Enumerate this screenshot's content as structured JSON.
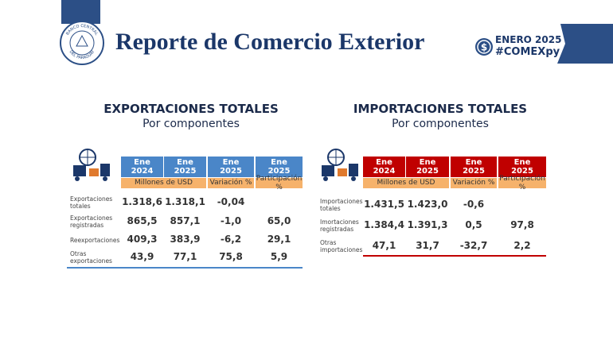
{
  "header": {
    "logo_top": "BANCO CENTRAL",
    "logo_bottom": "DEL PARAGUAY",
    "title": "Reporte de Comercio Exterior",
    "period": "ENERO 2025",
    "hashtag": "#COMEXpy"
  },
  "tables": [
    {
      "title": "EXPORTACIONES TOTALES",
      "subtitle": "Por componentes",
      "headers": [
        "Ene 2024",
        "Ene 2025",
        "Ene 2025",
        "Ene 2025"
      ],
      "subheaders": [
        "Millones de USD",
        "Variación %",
        "Participación %"
      ],
      "rows": [
        {
          "label": "Exportaciones totales",
          "cells": [
            "1.318,6",
            "1.318,1",
            "-0,04",
            null
          ]
        },
        {
          "label": "Exportaciones registradas",
          "cells": [
            "865,5",
            "857,1",
            "-1,0",
            "65,0"
          ]
        },
        {
          "label": "Reexportaciones",
          "cells": [
            "409,3",
            "383,9",
            "-6,2",
            "29,1"
          ]
        },
        {
          "label": "Otras exportaciones",
          "cells": [
            "43,9",
            "77,1",
            "75,8",
            "5,9"
          ]
        }
      ]
    },
    {
      "title": "IMPORTACIONES TOTALES",
      "subtitle": "Por componentes",
      "headers": [
        "Ene 2024",
        "Ene 2025",
        "Ene 2025",
        "Ene 2025"
      ],
      "subheaders": [
        "Millones de USD",
        "Variación %",
        "Participación %"
      ],
      "rows": [
        {
          "label": "Importaciones totales",
          "cells": [
            "1.431,5",
            "1.423,0",
            "-0,6",
            null
          ]
        },
        {
          "label": "Imortaciones registradas",
          "cells": [
            "1.384,4",
            "1.391,3",
            "0,5",
            "97,8"
          ]
        },
        {
          "label": "Otras importaciones",
          "cells": [
            "47,1",
            "31,7",
            "-32,7",
            "2,2"
          ]
        }
      ]
    }
  ]
}
